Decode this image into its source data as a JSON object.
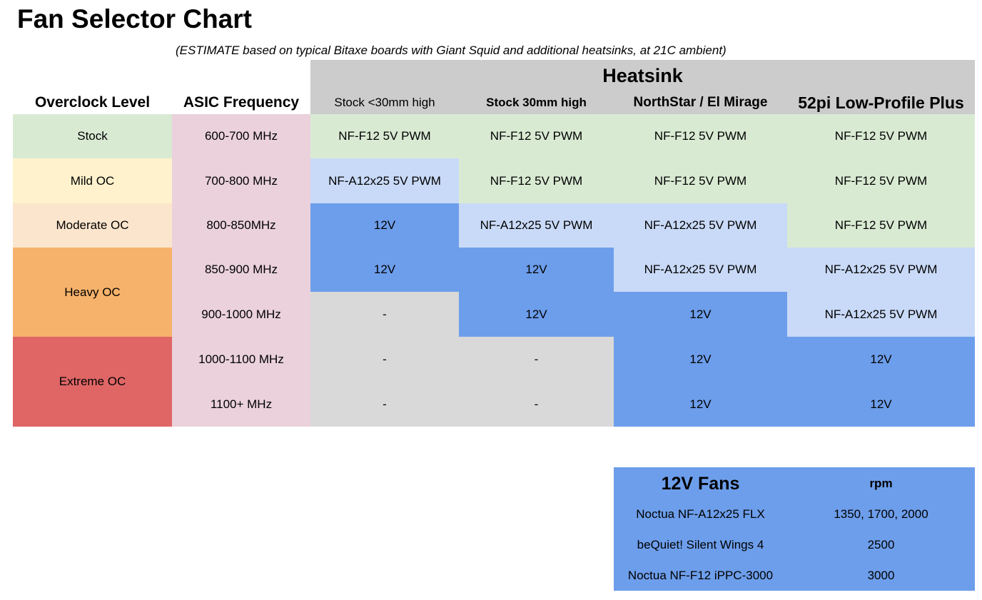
{
  "title": "Fan Selector Chart",
  "subtitle": "(ESTIMATE based on typical Bitaxe boards with Giant Squid and additional heatsinks, at 21C ambient)",
  "heatsink_label": "Heatsink",
  "headers": {
    "overclock_level": "Overclock Level",
    "asic_frequency": "ASIC Frequency",
    "heatsinks": [
      "Stock <30mm high",
      "Stock 30mm high",
      "NorthStar / El Mirage",
      "52pi Low-Profile Plus"
    ]
  },
  "levels": [
    "Stock",
    "Mild OC",
    "Moderate OC",
    "Heavy OC",
    "Extreme OC"
  ],
  "frequencies": [
    "600-700 MHz",
    "700-800 MHz",
    "800-850MHz",
    "850-900 MHz",
    "900-1000 MHz",
    "1000-1100 MHz",
    "1100+ MHz"
  ],
  "rows": [
    [
      "NF-F12 5V PWM",
      "NF-F12 5V PWM",
      "NF-F12 5V PWM",
      "NF-F12 5V PWM"
    ],
    [
      "NF-A12x25 5V PWM",
      "NF-F12 5V PWM",
      "NF-F12 5V PWM",
      "NF-F12 5V PWM"
    ],
    [
      "12V",
      "NF-A12x25 5V PWM",
      "NF-A12x25 5V PWM",
      "NF-F12 5V PWM"
    ],
    [
      "12V",
      "12V",
      "NF-A12x25 5V PWM",
      "NF-A12x25 5V PWM"
    ],
    [
      "-",
      "12V",
      "12V",
      "NF-A12x25 5V PWM"
    ],
    [
      "-",
      "-",
      "12V",
      "12V"
    ],
    [
      "-",
      "-",
      "12V",
      "12V"
    ]
  ],
  "cell_colors": {
    "level_stock": "#d9ead3",
    "level_mild": "#fff2cc",
    "level_moderate": "#fce5cd",
    "level_heavy": "#f6b26b",
    "level_extreme": "#e06666",
    "frequency": "#ead1dc",
    "nf_f12": "#d9ead3",
    "nf_a12x25": "#c9daf8",
    "twelve_v": "#6d9eeb",
    "not_applicable": "#d9d9d9",
    "heatsink_header": "#cccccc"
  },
  "fans_table": {
    "title": "12V Fans",
    "rpm_header": "rpm",
    "fans": [
      {
        "name": "Noctua NF-A12x25 FLX",
        "rpm": "1350, 1700, 2000"
      },
      {
        "name": "beQuiet! Silent Wings 4",
        "rpm": "2500"
      },
      {
        "name": "Noctua NF-F12 iPPC-3000",
        "rpm": "3000"
      }
    ]
  }
}
